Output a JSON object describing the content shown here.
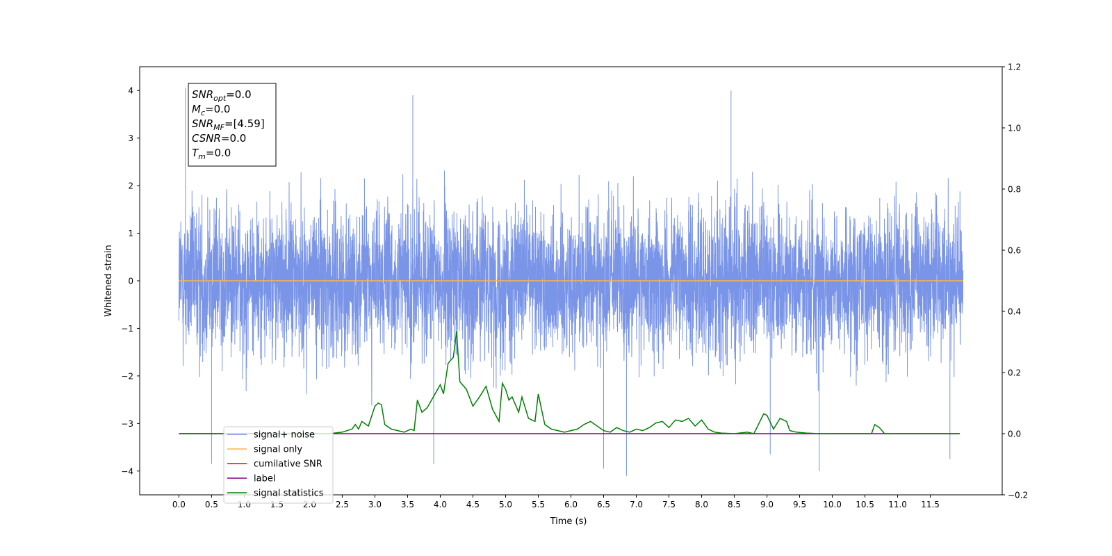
{
  "chart_data": {
    "type": "line",
    "xlabel": "Time (s)",
    "ylabel": "Whitened strain",
    "xlim": [
      -0.6,
      12.6
    ],
    "ylim": [
      -4.5,
      4.5
    ],
    "y2lim": [
      -0.2,
      1.2
    ],
    "x_ticks": [
      0.0,
      0.5,
      1.0,
      1.5,
      2.0,
      2.5,
      3.0,
      3.5,
      4.0,
      4.5,
      5.0,
      5.5,
      6.0,
      6.5,
      7.0,
      7.5,
      8.0,
      8.5,
      9.0,
      9.5,
      10.0,
      10.5,
      11.0,
      11.5
    ],
    "x_tick_labels": [
      "0.0",
      "0.5",
      "1.0",
      "1.5",
      "2.0",
      "2.5",
      "3.0",
      "3.5",
      "4.0",
      "4.5",
      "5.0",
      "5.5",
      "6.0",
      "6.5",
      "7.0",
      "7.5",
      "8.0",
      "8.5",
      "9.0",
      "9.5",
      "10.0",
      "10.5",
      "11.0",
      "11.5"
    ],
    "y_ticks": [
      -4,
      -3,
      -2,
      -1,
      0,
      1,
      2,
      3,
      4
    ],
    "y_tick_labels": [
      "−4",
      "−3",
      "−2",
      "−1",
      "0",
      "1",
      "2",
      "3",
      "4"
    ],
    "y2_ticks": [
      -0.2,
      0.0,
      0.2,
      0.4,
      0.6,
      0.8,
      1.0,
      1.2
    ],
    "y2_tick_labels": [
      "−0.2",
      "0.0",
      "0.2",
      "0.4",
      "0.6",
      "0.8",
      "1.0",
      "1.2"
    ],
    "grid": false,
    "legend_placement": "lower-left",
    "annotation": {
      "lines": [
        {
          "sym": "SNR",
          "sub": "opt",
          "rest": "=0.0"
        },
        {
          "sym": "M",
          "sub": "c",
          "rest": "=0.0"
        },
        {
          "sym": "SNR",
          "sub": "MF",
          "rest": "=[4.59]"
        },
        {
          "sym": "CSNR",
          "sub": "",
          "rest": "=0.0"
        },
        {
          "sym": "T",
          "sub": "m",
          "rest": "=0.0"
        }
      ]
    },
    "series": [
      {
        "name": "signal+ noise",
        "axis": "left",
        "color": "#7a95e8",
        "style": "dense noise trace",
        "t_range": [
          0.0,
          12.0
        ],
        "envelope_peaks": [
          [
            0.1,
            4.05
          ],
          [
            3.58,
            3.9
          ],
          [
            8.45,
            4.0
          ],
          [
            9.05,
            -3.65
          ],
          [
            9.8,
            -4.0
          ],
          [
            6.85,
            -4.1
          ],
          [
            6.5,
            -3.95
          ],
          [
            0.5,
            -3.85
          ],
          [
            3.9,
            -3.85
          ],
          [
            11.8,
            -3.75
          ]
        ]
      },
      {
        "name": "signal only",
        "axis": "left",
        "color": "#ffb347",
        "x": [
          0.0,
          12.0
        ],
        "y": [
          0.0,
          0.0
        ]
      },
      {
        "name": "cumilative SNR",
        "axis": "left",
        "color": "#ff0000",
        "x": [],
        "y": []
      },
      {
        "name": "label",
        "axis": "right",
        "color": "#800080",
        "x": [
          0.0,
          11.95
        ],
        "y": [
          0.0,
          0.0
        ]
      },
      {
        "name": "signal statistics",
        "axis": "right",
        "color": "#008000",
        "x": [
          0.0,
          2.3,
          2.5,
          2.65,
          2.7,
          2.75,
          2.8,
          2.9,
          3.0,
          3.05,
          3.1,
          3.15,
          3.25,
          3.35,
          3.45,
          3.55,
          3.6,
          3.65,
          3.72,
          3.8,
          4.0,
          4.05,
          4.12,
          4.2,
          4.25,
          4.3,
          4.4,
          4.5,
          4.6,
          4.7,
          4.8,
          4.9,
          4.95,
          5.0,
          5.05,
          5.1,
          5.2,
          5.25,
          5.35,
          5.45,
          5.5,
          5.6,
          5.7,
          5.8,
          5.9,
          6.0,
          6.1,
          6.2,
          6.3,
          6.4,
          6.5,
          6.6,
          6.7,
          6.8,
          6.9,
          7.0,
          7.1,
          7.2,
          7.3,
          7.4,
          7.5,
          7.6,
          7.7,
          7.8,
          7.9,
          8.0,
          8.1,
          8.2,
          8.3,
          8.5,
          8.7,
          8.8,
          8.95,
          9.0,
          9.1,
          9.2,
          9.3,
          9.35,
          9.45,
          9.6,
          9.8,
          10.0,
          10.3,
          10.6,
          10.65,
          10.72,
          10.8,
          11.0,
          11.95
        ],
        "y": [
          0.0,
          0.0,
          0.005,
          0.015,
          0.03,
          0.015,
          0.04,
          0.025,
          0.09,
          0.1,
          0.095,
          0.03,
          0.015,
          0.01,
          0.005,
          0.015,
          0.01,
          0.11,
          0.07,
          0.085,
          0.16,
          0.13,
          0.23,
          0.25,
          0.335,
          0.17,
          0.145,
          0.09,
          0.12,
          0.155,
          0.08,
          0.04,
          0.165,
          0.145,
          0.11,
          0.12,
          0.07,
          0.12,
          0.05,
          0.04,
          0.13,
          0.03,
          0.015,
          0.01,
          0.005,
          0.01,
          0.015,
          0.03,
          0.04,
          0.025,
          0.01,
          0.005,
          0.02,
          0.01,
          0.005,
          0.015,
          0.01,
          0.02,
          0.035,
          0.04,
          0.02,
          0.045,
          0.04,
          0.05,
          0.025,
          0.045,
          0.015,
          0.005,
          0.002,
          0.0,
          0.005,
          0.0,
          0.065,
          0.06,
          0.015,
          0.05,
          0.04,
          0.01,
          0.005,
          0.002,
          0.0,
          0.0,
          0.0,
          0.0,
          0.03,
          0.02,
          0.0,
          0.0,
          0.0
        ]
      }
    ]
  }
}
